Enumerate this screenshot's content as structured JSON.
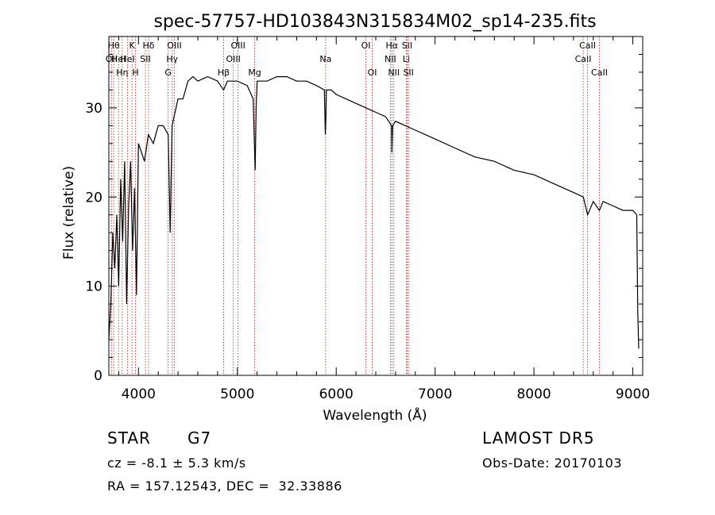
{
  "chart_data": {
    "type": "line",
    "title": "spec-57757-HD103843N315834M02_sp14-235.fits",
    "xlabel": "Wavelength (Å)",
    "ylabel": "Flux (relative)",
    "xlim": [
      3700,
      9100
    ],
    "ylim": [
      0,
      38
    ],
    "xticks": [
      4000,
      5000,
      6000,
      7000,
      8000,
      9000
    ],
    "yticks": [
      0,
      10,
      20,
      30
    ],
    "x_tick_labels": [
      "4000",
      "5000",
      "6000",
      "7000",
      "8000",
      "9000"
    ],
    "y_tick_labels": [
      "0",
      "10",
      "20",
      "30"
    ],
    "grid": false,
    "line_color": "#000000",
    "marker_color": "#b22222",
    "series": [
      {
        "x": [
          3700,
          3720,
          3740,
          3760,
          3780,
          3800,
          3820,
          3840,
          3860,
          3880,
          3900,
          3920,
          3940,
          3960,
          3980,
          4000,
          4030,
          4060,
          4100,
          4150,
          4200,
          4250,
          4300,
          4320,
          4340,
          4360,
          4400,
          4450,
          4500,
          4550,
          4600,
          4700,
          4800,
          4860,
          4900,
          5000,
          5100,
          5160,
          5170,
          5180,
          5190,
          5200,
          5250,
          5300,
          5400,
          5500,
          5600,
          5700,
          5800,
          5880,
          5890,
          5896,
          5900,
          5950,
          6000,
          6100,
          6200,
          6300,
          6400,
          6500,
          6560,
          6563,
          6570,
          6600,
          6700,
          6800,
          6900,
          7000,
          7200,
          7400,
          7600,
          7800,
          8000,
          8200,
          8400,
          8500,
          8542,
          8600,
          8662,
          8700,
          8800,
          8900,
          9000,
          9040,
          9050,
          9060
        ],
        "y": [
          4,
          8,
          16,
          12,
          18,
          10,
          22,
          15,
          24,
          8,
          19,
          24,
          14,
          21,
          9,
          26,
          25,
          24,
          27,
          26,
          28,
          28,
          27,
          16,
          28,
          29,
          31,
          31,
          33,
          33.5,
          33,
          33.5,
          33,
          32,
          33,
          33,
          32.5,
          31,
          27,
          23,
          30,
          33,
          33,
          33,
          33.5,
          33.5,
          33,
          33,
          32.5,
          32,
          27,
          29,
          32,
          32,
          31.5,
          31,
          30.5,
          30,
          29.5,
          29,
          28,
          25,
          28,
          28.5,
          28,
          27.5,
          27,
          26.5,
          25.5,
          24.5,
          24,
          23,
          22.5,
          21.5,
          20.5,
          20,
          18,
          19.5,
          18.5,
          19.5,
          19,
          18.5,
          18.5,
          18,
          7,
          3
        ]
      }
    ],
    "line_markers": [
      {
        "wavelength": 3727,
        "label": "OII",
        "row": 2
      },
      {
        "wavelength": 3750,
        "label": "Hθ",
        "row": 1
      },
      {
        "wavelength": 3798,
        "label": "HeI",
        "row": 2
      },
      {
        "wavelength": 3835,
        "label": "Hη",
        "row": 3
      },
      {
        "wavelength": 3889,
        "label": "HeI",
        "row": 2
      },
      {
        "wavelength": 3934,
        "label": "K",
        "row": 1
      },
      {
        "wavelength": 3969,
        "label": "H",
        "row": 3
      },
      {
        "wavelength": 4070,
        "label": "SII",
        "row": 2
      },
      {
        "wavelength": 4102,
        "label": "Hδ",
        "row": 1
      },
      {
        "wavelength": 4300,
        "label": "G",
        "row": 3
      },
      {
        "wavelength": 4341,
        "label": "Hγ",
        "row": 2
      },
      {
        "wavelength": 4363,
        "label": "OIII",
        "row": 1
      },
      {
        "wavelength": 4861,
        "label": "Hβ",
        "row": 3
      },
      {
        "wavelength": 4959,
        "label": "OIII",
        "row": 2
      },
      {
        "wavelength": 5007,
        "label": "OIII",
        "row": 1
      },
      {
        "wavelength": 5175,
        "label": "Mg",
        "row": 3
      },
      {
        "wavelength": 5893,
        "label": "Na",
        "row": 2
      },
      {
        "wavelength": 6300,
        "label": "OI",
        "row": 1
      },
      {
        "wavelength": 6364,
        "label": "OI",
        "row": 3
      },
      {
        "wavelength": 6548,
        "label": "NII",
        "row": 2
      },
      {
        "wavelength": 6563,
        "label": "Hα",
        "row": 1
      },
      {
        "wavelength": 6583,
        "label": "NII",
        "row": 3
      },
      {
        "wavelength": 6708,
        "label": "Li",
        "row": 2
      },
      {
        "wavelength": 6717,
        "label": "SII",
        "row": 1
      },
      {
        "wavelength": 6731,
        "label": "SII",
        "row": 3
      },
      {
        "wavelength": 8498,
        "label": "CaII",
        "row": 2
      },
      {
        "wavelength": 8542,
        "label": "CaII",
        "row": 1
      },
      {
        "wavelength": 8662,
        "label": "CaII",
        "row": 3
      }
    ]
  },
  "info": {
    "object_type": "STAR",
    "subclass": "G7",
    "survey": "LAMOST DR5",
    "redshift_line": "cz = -8.1 ± 5.3 km/s",
    "obs_date": "Obs-Date: 20170103",
    "coords": "RA = 157.12543, DEC =  32.33886"
  }
}
